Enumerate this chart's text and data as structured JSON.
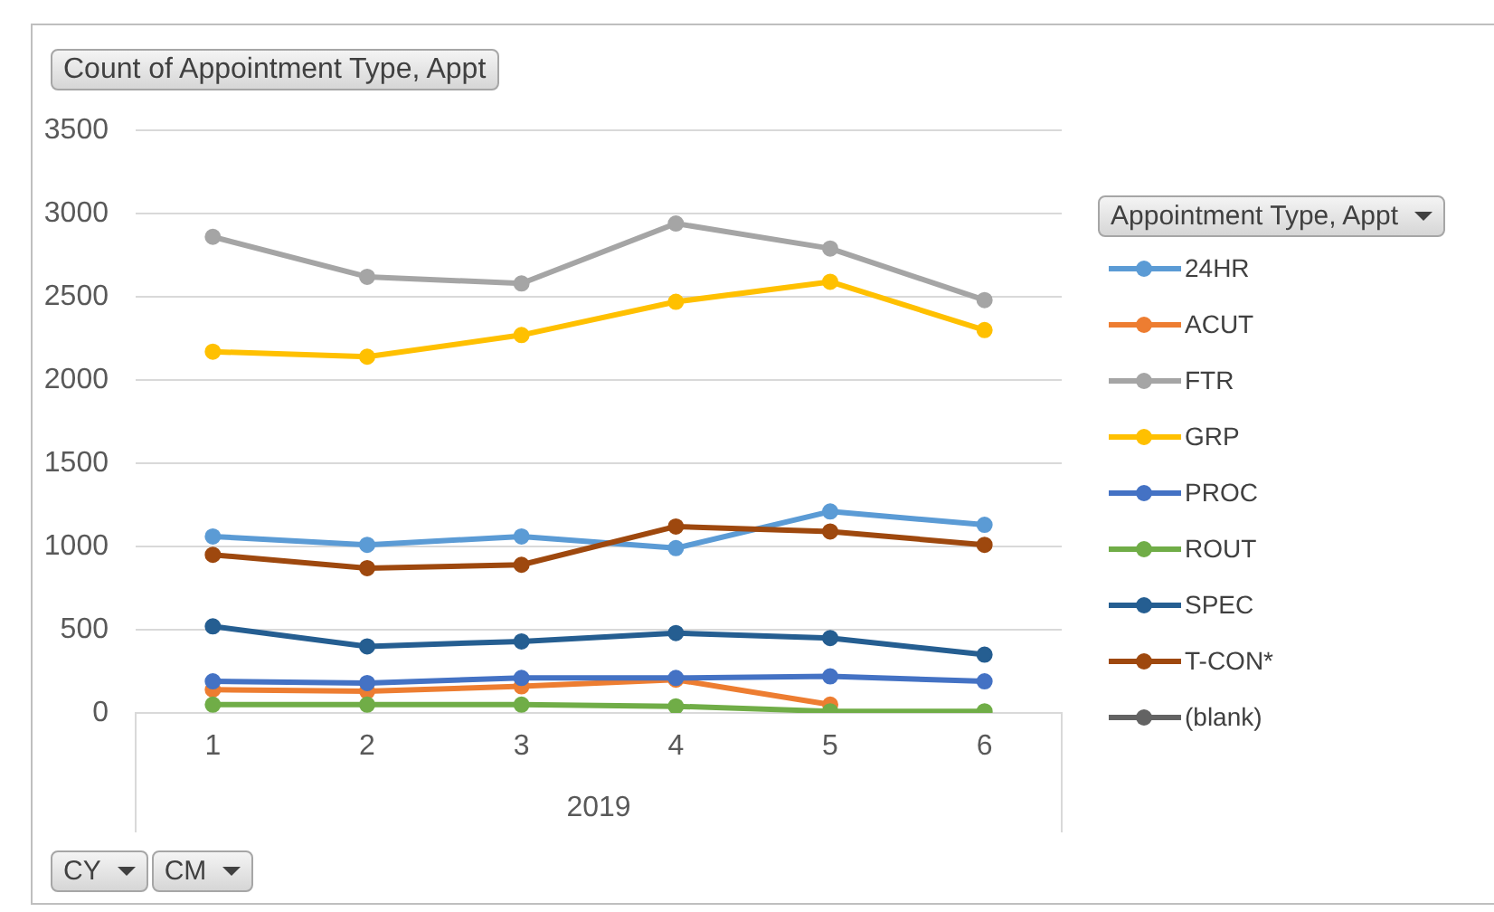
{
  "chart_data": {
    "type": "line",
    "title": "Count of Appointment Type, Appt",
    "xlabel": "2019",
    "legend_title": "Appointment Type, Appt",
    "annotations": [
      "CY",
      "CM"
    ],
    "categories": [
      "1",
      "2",
      "3",
      "4",
      "5",
      "6"
    ],
    "series": [
      {
        "name": "24HR",
        "color": "#5b9bd5",
        "values": [
          1060,
          1010,
          1060,
          990,
          1210,
          1130
        ]
      },
      {
        "name": "ACUT",
        "color": "#ed7d31",
        "values": [
          140,
          130,
          160,
          200,
          50,
          null
        ]
      },
      {
        "name": "FTR",
        "color": "#a5a5a5",
        "values": [
          2860,
          2620,
          2580,
          2940,
          2790,
          2480
        ]
      },
      {
        "name": "GRP",
        "color": "#ffc000",
        "values": [
          2170,
          2140,
          2270,
          2470,
          2590,
          2300
        ]
      },
      {
        "name": "PROC",
        "color": "#4472c4",
        "values": [
          190,
          180,
          210,
          210,
          220,
          190
        ]
      },
      {
        "name": "ROUT",
        "color": "#70ad47",
        "values": [
          50,
          50,
          50,
          40,
          10,
          10
        ]
      },
      {
        "name": "SPEC",
        "color": "#255e91",
        "values": [
          520,
          400,
          430,
          480,
          450,
          350
        ]
      },
      {
        "name": "T-CON*",
        "color": "#9e480e",
        "values": [
          950,
          870,
          890,
          1120,
          1090,
          1010
        ]
      },
      {
        "name": "(blank)",
        "color": "#636363",
        "values": [
          null,
          null,
          null,
          null,
          null,
          null
        ]
      }
    ],
    "ylim": [
      0,
      3500
    ],
    "yticks": [
      0,
      500,
      1000,
      1500,
      2000,
      2500,
      3000,
      3500
    ],
    "grid": "y",
    "legend": "right",
    "marker": "circle",
    "line_style": "solid"
  }
}
